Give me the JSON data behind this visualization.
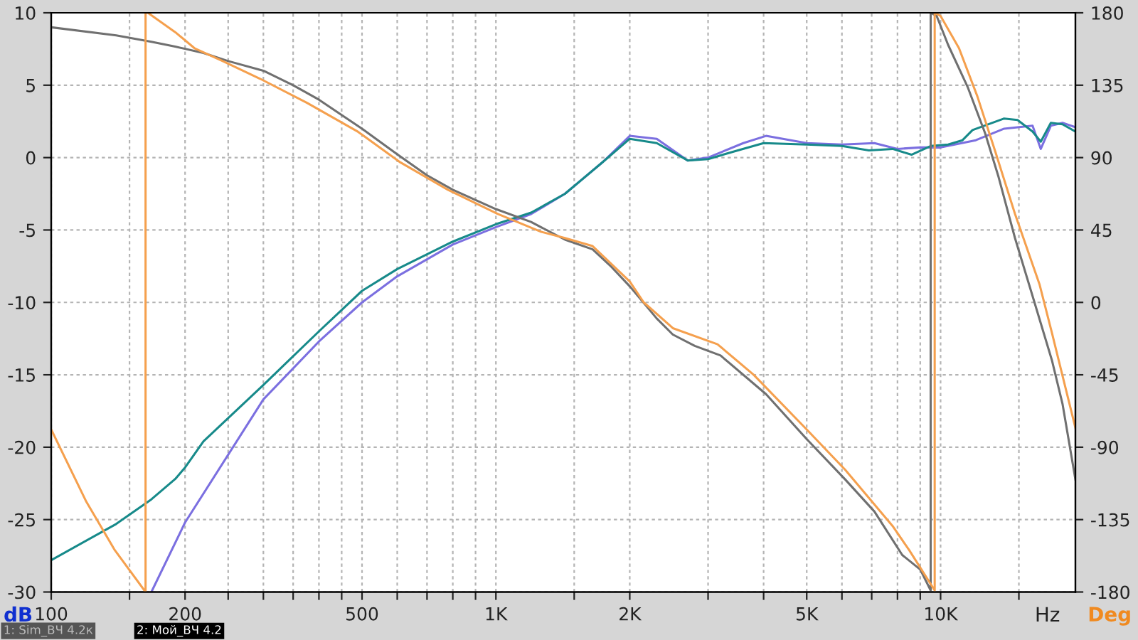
{
  "chart_data": {
    "type": "line",
    "xlabel": "Hz",
    "ylabel": "dB",
    "y2label": "Deg",
    "log": "x",
    "grid": true,
    "marker": "none",
    "line_style": "solid",
    "xlim": [
      100,
      20100
    ],
    "xticks": [
      100,
      {
        "value": 150,
        "label": null
      },
      200,
      {
        "value": 250,
        "label": null
      },
      {
        "value": 300,
        "label": null
      },
      {
        "value": 350,
        "label": null
      },
      {
        "value": 400,
        "label": null
      },
      {
        "value": 450,
        "label": null
      },
      500,
      {
        "value": 600,
        "label": null
      },
      {
        "value": 700,
        "label": null
      },
      {
        "value": 800,
        "label": null
      },
      {
        "value": 900,
        "label": null
      },
      {
        "value": 1000,
        "label": "1K"
      },
      {
        "value": 1500,
        "label": null
      },
      {
        "value": 2000,
        "label": "2K"
      },
      {
        "value": 3000,
        "label": null
      },
      {
        "value": 4000,
        "label": null
      },
      {
        "value": 5000,
        "label": "5K"
      },
      {
        "value": 6000,
        "label": null
      },
      {
        "value": 7000,
        "label": null
      },
      {
        "value": 8000,
        "label": null
      },
      {
        "value": 9000,
        "label": null
      },
      {
        "value": 10000,
        "label": "10K"
      },
      {
        "value": 15000,
        "label": null
      }
    ],
    "ylim": [
      -30,
      10
    ],
    "yticks": [
      -30,
      -25,
      -20,
      -15,
      -10,
      -5,
      0,
      5,
      10
    ],
    "y2lim": [
      -180,
      180
    ],
    "y2ticks": [
      -180,
      -135,
      -90,
      -45,
      0,
      45,
      90,
      135,
      180
    ],
    "annotations": [
      "1: Sim_ВЧ 4.2к",
      "2: Мой_ВЧ 4.2"
    ],
    "series": [
      {
        "color": "#7b6fe0",
        "x": [
          168,
          200,
          300,
          400,
          500,
          600,
          800,
          1000,
          1200,
          1430,
          1740,
          2000,
          2300,
          2700,
          3000,
          3600,
          4050,
          5000,
          6000,
          7100,
          8000,
          9000,
          10000,
          12000,
          13900,
          16100,
          16800,
          17700,
          18800,
          20100
        ],
        "values": [
          -30,
          -25.2,
          -16.7,
          -12.7,
          -10,
          -8.2,
          -6.0,
          -4.8,
          -3.9,
          -2.5,
          -0.3,
          1.5,
          1.3,
          -0.2,
          0,
          1.0,
          1.5,
          1.0,
          0.9,
          1.0,
          0.6,
          0.7,
          0.7,
          1.2,
          2.0,
          2.2,
          0.6,
          2.2,
          2.4,
          2.1
        ]
      },
      {
        "color": "#178a8a",
        "x": [
          100,
          140,
          168,
          190,
          200,
          220,
          300,
          400,
          500,
          600,
          800,
          1000,
          1200,
          1430,
          1740,
          2000,
          2300,
          2700,
          3000,
          3500,
          4000,
          5000,
          6000,
          6900,
          7800,
          8600,
          9500,
          10400,
          11200,
          11800,
          13900,
          14900,
          16100,
          16800,
          17700,
          18800,
          20100
        ],
        "values": [
          -27.8,
          -25.3,
          -23.6,
          -22.2,
          -21.4,
          -19.6,
          -15.7,
          -12,
          -9.2,
          -7.7,
          -5.8,
          -4.6,
          -3.8,
          -2.5,
          -0.3,
          1.3,
          1.0,
          -0.2,
          -0.1,
          0.5,
          1.0,
          0.9,
          0.8,
          0.5,
          0.6,
          0.2,
          0.8,
          0.9,
          1.2,
          1.9,
          2.7,
          2.6,
          1.8,
          1.1,
          2.4,
          2.3,
          1.8
        ]
      },
      {
        "axis": "y2",
        "color": "#707070",
        "x": [
          100,
          140,
          168,
          190,
          220,
          250,
          300,
          350,
          400,
          500,
          600,
          700,
          800,
          1000,
          1200,
          1430,
          1650,
          1820,
          2000,
          2300,
          2500,
          2800,
          3200,
          4050,
          5000,
          6100,
          7100,
          8200,
          9000,
          9500,
          9500,
          9800,
          10400,
          11500,
          12600,
          13500,
          14700,
          16100,
          17800,
          18800,
          20100
        ],
        "values": [
          171,
          166,
          162,
          159,
          155,
          150,
          144,
          135,
          126,
          108,
          92,
          79,
          70,
          58,
          50,
          39,
          33,
          22,
          10,
          -10,
          -20,
          -27,
          -33,
          -57,
          -85,
          -110,
          -130,
          -157,
          -166,
          -179,
          180,
          178,
          160,
          134,
          105,
          78,
          40,
          4,
          -36,
          -63,
          -110
        ]
      },
      {
        "axis": "y2",
        "color": "#f5a04e",
        "x": [
          100,
          120,
          139,
          163,
          163,
          165,
          190,
          210,
          243,
          295,
          376,
          490,
          610,
          780,
          1010,
          1260,
          1430,
          1650,
          2000,
          2150,
          2500,
          3150,
          3800,
          5000,
          6100,
          7800,
          8500,
          9700,
          9700,
          10000,
          11000,
          12100,
          13300,
          14700,
          16700,
          17800,
          20100
        ],
        "values": [
          -79,
          -124,
          -154,
          -180,
          180,
          180,
          168,
          158,
          150,
          139,
          124,
          106,
          87,
          70,
          55,
          44,
          40,
          35,
          13,
          0,
          -16,
          -26,
          -45,
          -79,
          -104,
          -139,
          -154,
          -179,
          180,
          178,
          158,
          128,
          93,
          55,
          11,
          -19,
          -78
        ]
      }
    ]
  }
}
